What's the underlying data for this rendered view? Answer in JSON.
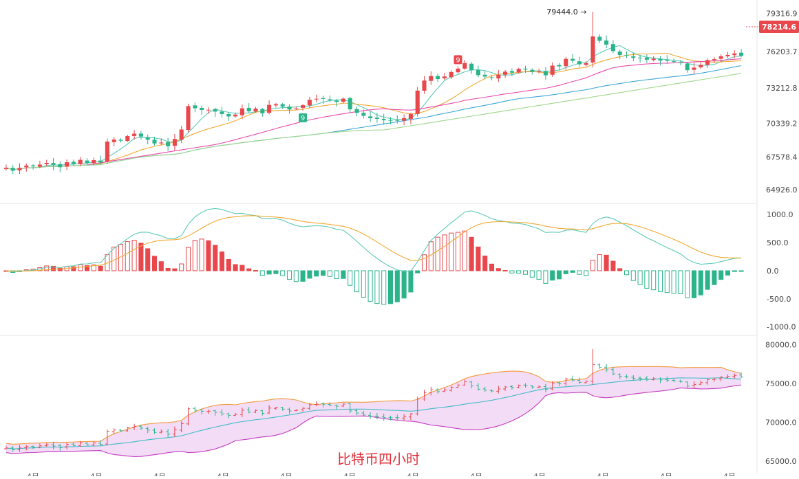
{
  "caption": "比特币四小时",
  "colors": {
    "up": "#e8474c",
    "down": "#2bb48a",
    "ma_fast": "#5cc9b8",
    "ma_mid": "#f0a830",
    "ma_slow": "#e84aaa",
    "ma_long": "#3ca6d6",
    "ma_longest": "#9ed68a",
    "boll_upper": "#f29a3b",
    "boll_mid": "#3fbcc4",
    "boll_lower": "#c33bbf",
    "boll_fill": "#f3dcf6",
    "price_tag": "#e8474c",
    "grid": "#eeeeee"
  },
  "chart_data": [
    {
      "type": "candlestick",
      "panel": "price",
      "y_ticks": [
        "79316.9",
        "78214.6",
        "76203.7",
        "73212.8",
        "70339.2",
        "67578.4",
        "64926.0"
      ],
      "y_tick_values": [
        79316.9,
        78214.6,
        76203.7,
        73212.8,
        70339.2,
        67578.4,
        64926.0
      ],
      "current_price": "78214.6",
      "current_price_value": 78214.6,
      "high_label": "79444.0",
      "high_value": 79444.0,
      "td_markers": [
        {
          "text": "9",
          "color": "#e8474c",
          "index": 67
        },
        {
          "text": "9",
          "color": "#2bb48a",
          "index": 44
        }
      ],
      "candle_count": 110,
      "x_tick_labels": [
        "4月",
        "4月",
        "4月",
        "4月",
        "4月",
        "4月",
        "4月",
        "4月",
        "4月",
        "4月",
        "4月",
        "4月"
      ],
      "path": [
        66700,
        66500,
        66750,
        66900,
        66800,
        67000,
        67100,
        67000,
        66800,
        67200,
        67000,
        67300,
        67100,
        67300,
        67200,
        68800,
        69000,
        68900,
        69300,
        69500,
        69200,
        69000,
        68700,
        68800,
        68500,
        69000,
        69800,
        71800,
        71600,
        71400,
        71500,
        71300,
        71100,
        70900,
        71000,
        71600,
        71300,
        71500,
        71200,
        71800,
        71900,
        71700,
        71500,
        71600,
        71800,
        72300,
        72400,
        72300,
        72200,
        72100,
        72400,
        71500,
        71200,
        70900,
        70800,
        70700,
        70600,
        70600,
        70550,
        70700,
        71100,
        73000,
        73800,
        74200,
        74000,
        74100,
        74500,
        74800,
        75200,
        74700,
        74300,
        74100,
        74000,
        74300,
        74600,
        74500,
        74800,
        74700,
        74500,
        74600,
        74300,
        75100,
        75000,
        75600,
        75400,
        75100,
        75300,
        77400,
        77100,
        76800,
        76200,
        75900,
        75800,
        75700,
        75700,
        75500,
        75600,
        75500,
        75400,
        75300,
        75200,
        74700,
        74900,
        75100,
        75500,
        75600,
        75800,
        75900,
        76100,
        75900
      ]
    },
    {
      "type": "line",
      "panel": "macd",
      "y_ticks": [
        "1000.0",
        "500.0",
        "0.0",
        "-500.0",
        "-1000.0"
      ],
      "y_tick_values": [
        1000,
        500,
        0,
        -500,
        -1000
      ],
      "series": [
        {
          "role": "dif",
          "color": "#5cc9b8"
        },
        {
          "role": "dea",
          "color": "#f0a830"
        },
        {
          "role": "histogram"
        }
      ]
    },
    {
      "type": "area",
      "panel": "bollinger",
      "y_ticks": [
        "80000.0",
        "75000.0",
        "70000.0",
        "65000.0"
      ],
      "y_tick_values": [
        80000,
        75000,
        70000,
        65000
      ]
    }
  ]
}
